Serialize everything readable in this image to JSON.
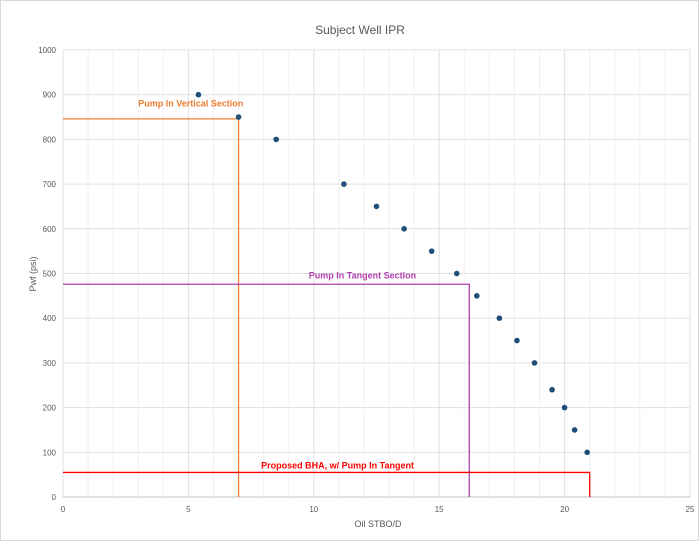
{
  "chart_data": {
    "type": "scatter",
    "title": "Subject Well IPR",
    "xlabel": "Oil STBO/D",
    "ylabel": "Pwf (psi)",
    "xlim": [
      0,
      25
    ],
    "ylim": [
      0,
      1000
    ],
    "xticks": [
      0,
      5,
      10,
      15,
      20,
      25
    ],
    "yticks": [
      0,
      100,
      200,
      300,
      400,
      500,
      600,
      700,
      800,
      900,
      1000
    ],
    "grid": true,
    "point_color": "#1f4e79",
    "series": [
      {
        "x": [
          5.4,
          7.0,
          8.5,
          11.2,
          12.5,
          13.6,
          14.7,
          15.7,
          16.5,
          17.4,
          18.1,
          18.8,
          19.5,
          20.0,
          20.4,
          20.9
        ],
        "y": [
          900,
          850,
          800,
          700,
          650,
          600,
          550,
          500,
          450,
          400,
          350,
          300,
          240,
          200,
          150,
          100
        ]
      }
    ],
    "annotations": [
      {
        "label": "Pump In Vertical Section",
        "color": "#ed7d31",
        "x": 7.0,
        "y": 846,
        "label_x": 3.0,
        "label_y": 880
      },
      {
        "label": "Pump In Tangent Section",
        "color": "#b040b0",
        "x": 16.2,
        "y": 476,
        "label_x": 9.8,
        "label_y": 495
      },
      {
        "label": "Proposed BHA, w/ Pump In Tangent",
        "color": "#ff0000",
        "x": 21.0,
        "y": 55,
        "label_x": 7.9,
        "label_y": 70
      }
    ]
  }
}
